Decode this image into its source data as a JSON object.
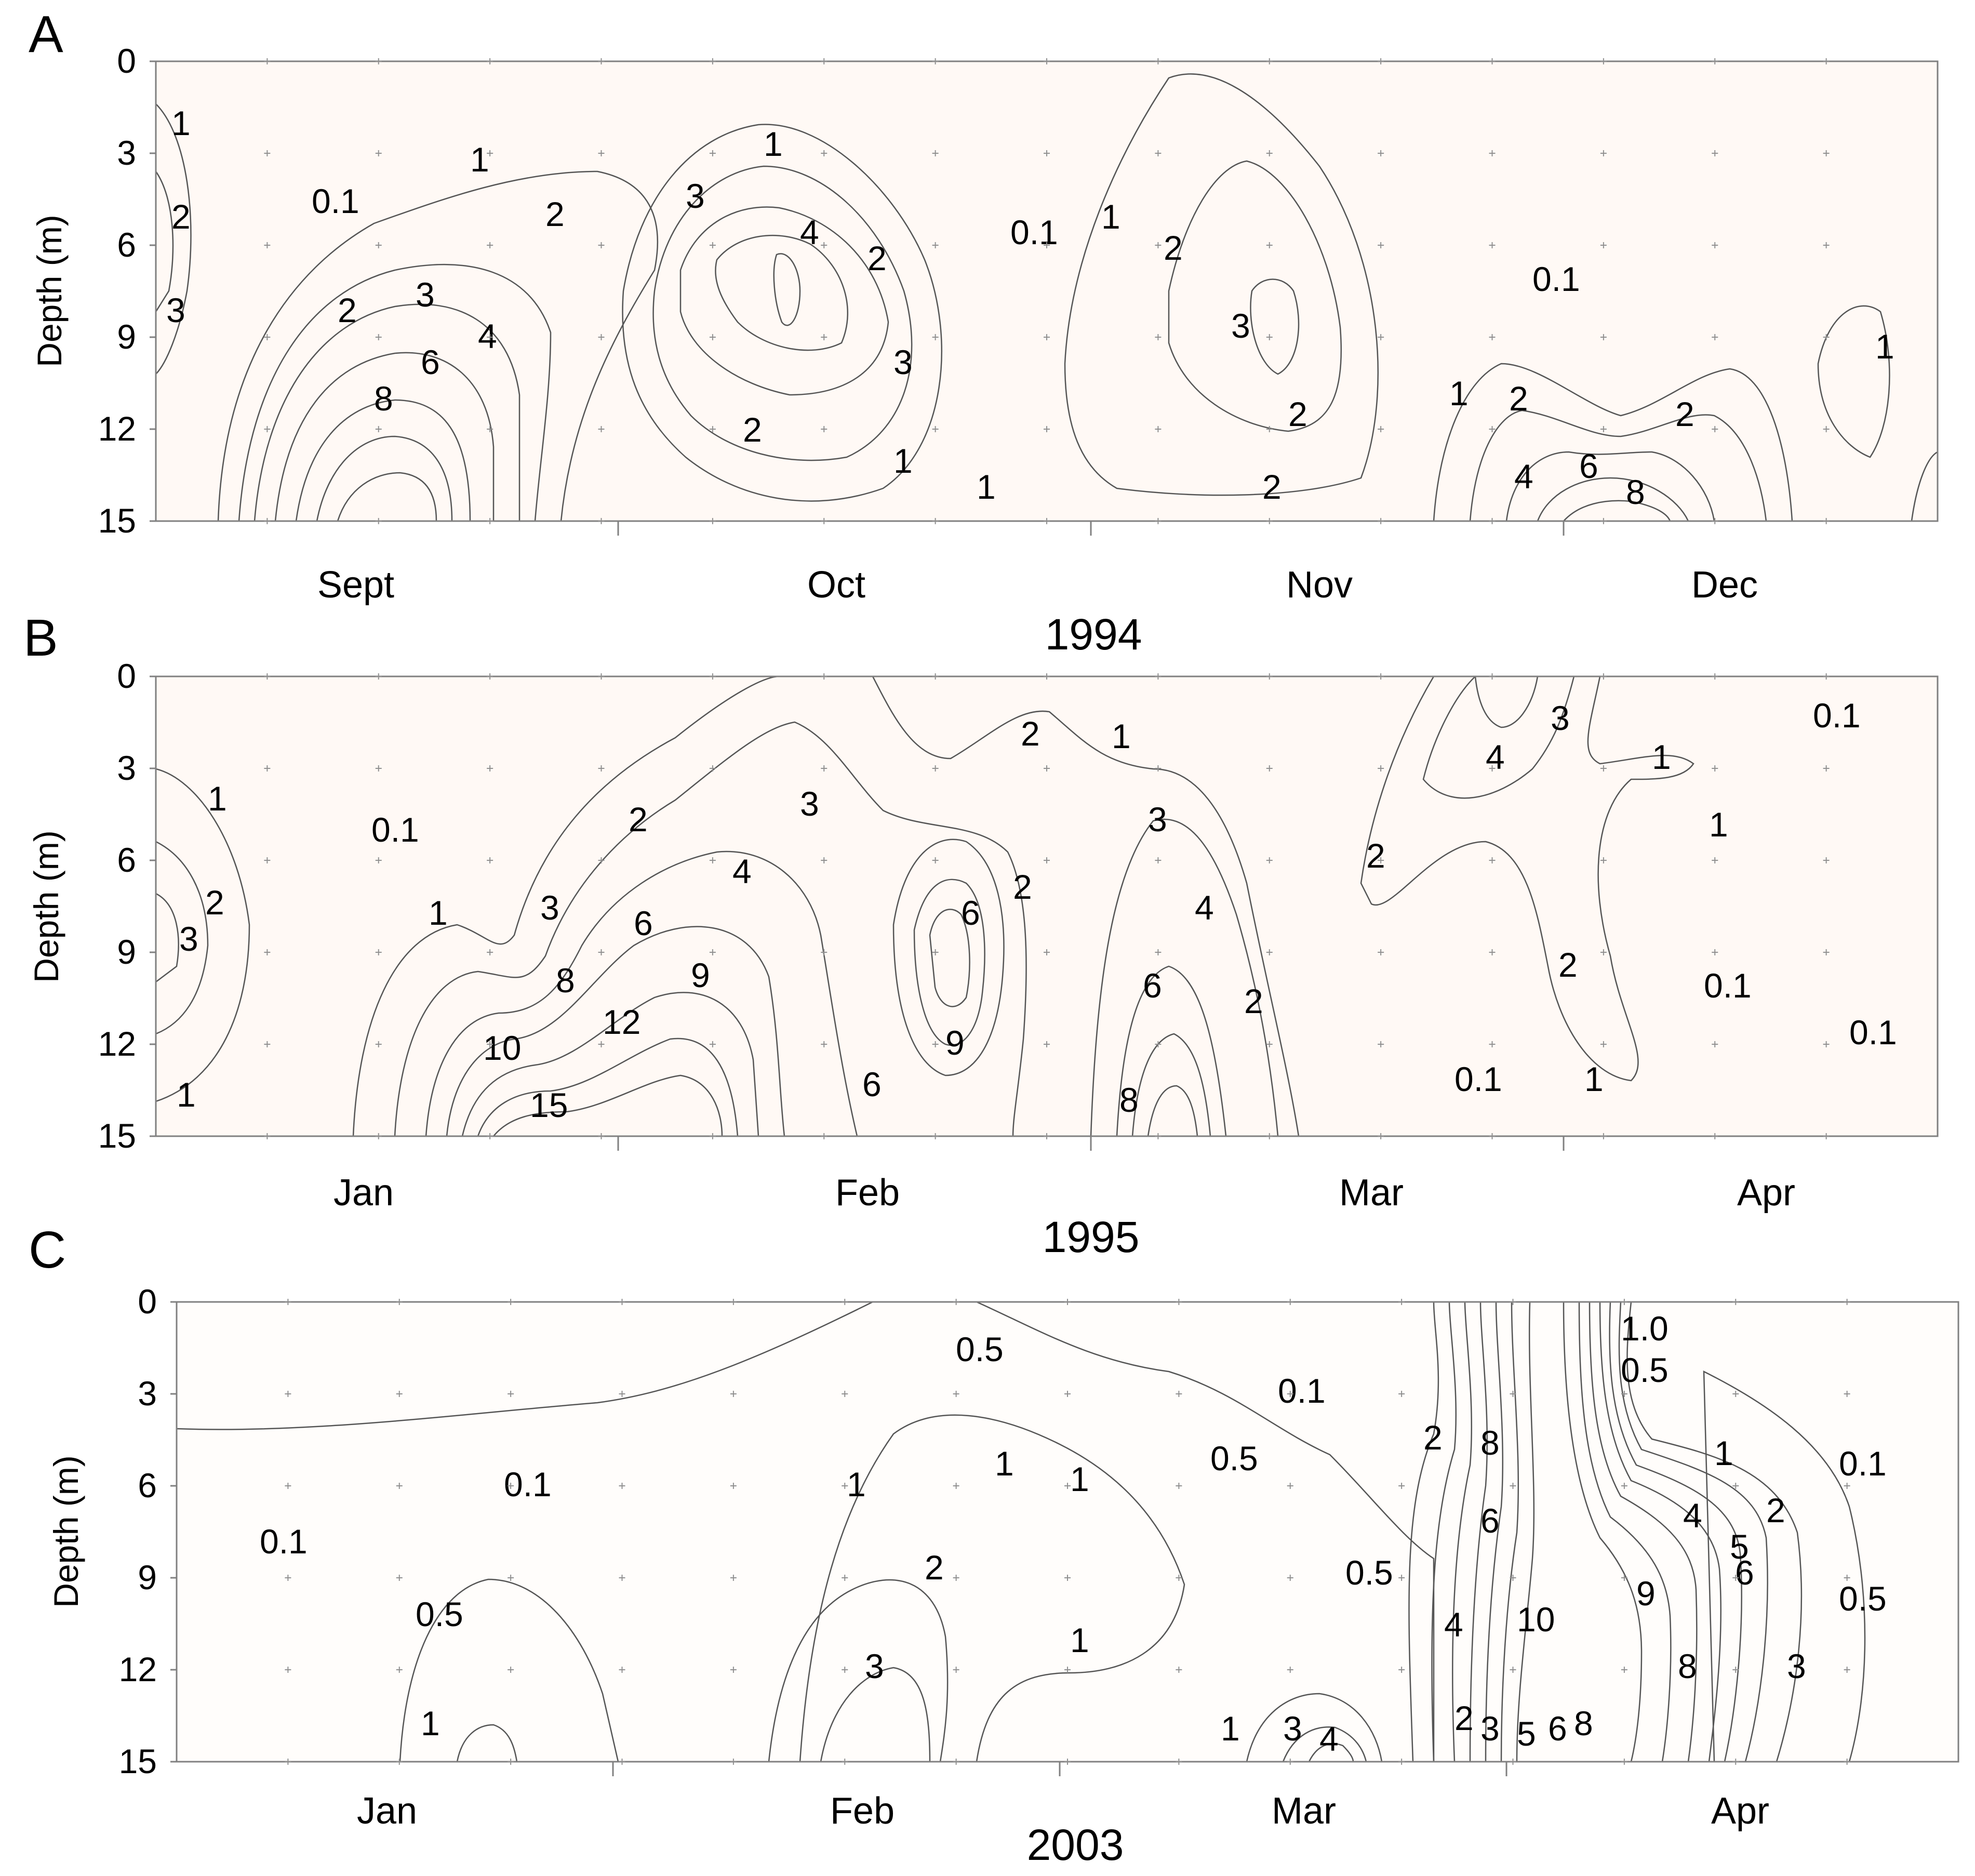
{
  "figure": {
    "description_free": true,
    "colors": {
      "level_low": "#fdf3ec",
      "level_1": "#fbe2d2",
      "level_2": "#f8d0b6",
      "level_3": "#f5bd98",
      "level_4": "#f3a777",
      "level_6": "#f18f52",
      "level_8": "#f07a33",
      "level_high": "#f26500",
      "isoline": "#555555"
    }
  },
  "chart_data": [
    {
      "type": "heatmap",
      "panel": "A",
      "title": "",
      "xlabel": "1994",
      "ylabel": "Depth (m)",
      "yticks": [
        "0",
        "3",
        "6",
        "9",
        "12",
        "15"
      ],
      "ylim": [
        0,
        15
      ],
      "months": [
        "Sept",
        "Oct",
        "Nov",
        "Dec"
      ],
      "contour_levels": [
        0.1,
        1,
        2,
        3,
        4,
        6,
        8
      ],
      "contour_labels": [
        "1",
        "2",
        "3",
        "0.1",
        "1",
        "2",
        "2",
        "3",
        "4",
        "6",
        "8",
        "3",
        "1",
        "4",
        "2",
        "3",
        "2",
        "1",
        "0.1",
        "1",
        "2",
        "3",
        "2",
        "1",
        "2",
        "0.1",
        "1",
        "2",
        "2",
        "4",
        "6",
        "8",
        "1"
      ],
      "hotspots": [
        {
          "x": 0.13,
          "depth": 15,
          "value": 10
        },
        {
          "x": 0.36,
          "depth": 7,
          "value": 4
        },
        {
          "x": 0.62,
          "depth": 9,
          "value": 3
        },
        {
          "x": 0.85,
          "depth": 15,
          "value": 9
        }
      ]
    },
    {
      "type": "heatmap",
      "panel": "B",
      "title": "",
      "xlabel": "1995",
      "ylabel": "Depth (m)",
      "yticks": [
        "0",
        "3",
        "6",
        "9",
        "12",
        "15"
      ],
      "ylim": [
        0,
        15
      ],
      "months": [
        "Jan",
        "Feb",
        "Mar",
        "Apr"
      ],
      "contour_levels": [
        0.1,
        1,
        2,
        3,
        4,
        6,
        8,
        9,
        10,
        12,
        15
      ],
      "contour_labels": [
        "1",
        "2",
        "3",
        "1",
        "0.1",
        "1",
        "3",
        "2",
        "4",
        "6",
        "8",
        "9",
        "10",
        "12",
        "15",
        "3",
        "6",
        "9",
        "6",
        "2",
        "2",
        "1",
        "3",
        "4",
        "6",
        "8",
        "2",
        "2",
        "4",
        "3",
        "1",
        "1",
        "2",
        "1",
        "0.1",
        "0.1",
        "0.1",
        "0.1"
      ],
      "hotspots": [
        {
          "x": 0.25,
          "depth": 14,
          "value": 16
        },
        {
          "x": 0.44,
          "depth": 10,
          "value": 9
        },
        {
          "x": 0.57,
          "depth": 14,
          "value": 9
        },
        {
          "x": 0.76,
          "depth": 0,
          "value": 5
        }
      ]
    },
    {
      "type": "heatmap",
      "panel": "C",
      "title": "",
      "xlabel": "2003",
      "ylabel": "Depth (m)",
      "yticks": [
        "0",
        "3",
        "6",
        "9",
        "12",
        "15"
      ],
      "ylim": [
        0,
        15
      ],
      "months": [
        "Jan",
        "Feb",
        "Mar",
        "Apr"
      ],
      "contour_levels": [
        0.1,
        0.5,
        1,
        2,
        3,
        4,
        5,
        6,
        8,
        9,
        10
      ],
      "contour_labels": [
        "0.1",
        "0.1",
        "0.5",
        "1",
        "1",
        "2",
        "3",
        "0.5",
        "1",
        "1",
        "1",
        "0.1",
        "0.5",
        "0.5",
        "1",
        "3",
        "4",
        "2",
        "8",
        "6",
        "4",
        "10",
        "2",
        "3",
        "5",
        "6",
        "8",
        "9",
        "8",
        "1.0",
        "0.5",
        "1",
        "4",
        "5",
        "2",
        "6",
        "3",
        "0.5",
        "0.1"
      ],
      "hotspots": [
        {
          "x": 0.08,
          "depth": 15,
          "value": 1.5
        },
        {
          "x": 0.42,
          "depth": 13,
          "value": 3
        },
        {
          "x": 0.66,
          "depth": 15,
          "value": 4.5
        },
        {
          "x": 0.78,
          "depth": 8,
          "value": 11
        }
      ]
    }
  ]
}
